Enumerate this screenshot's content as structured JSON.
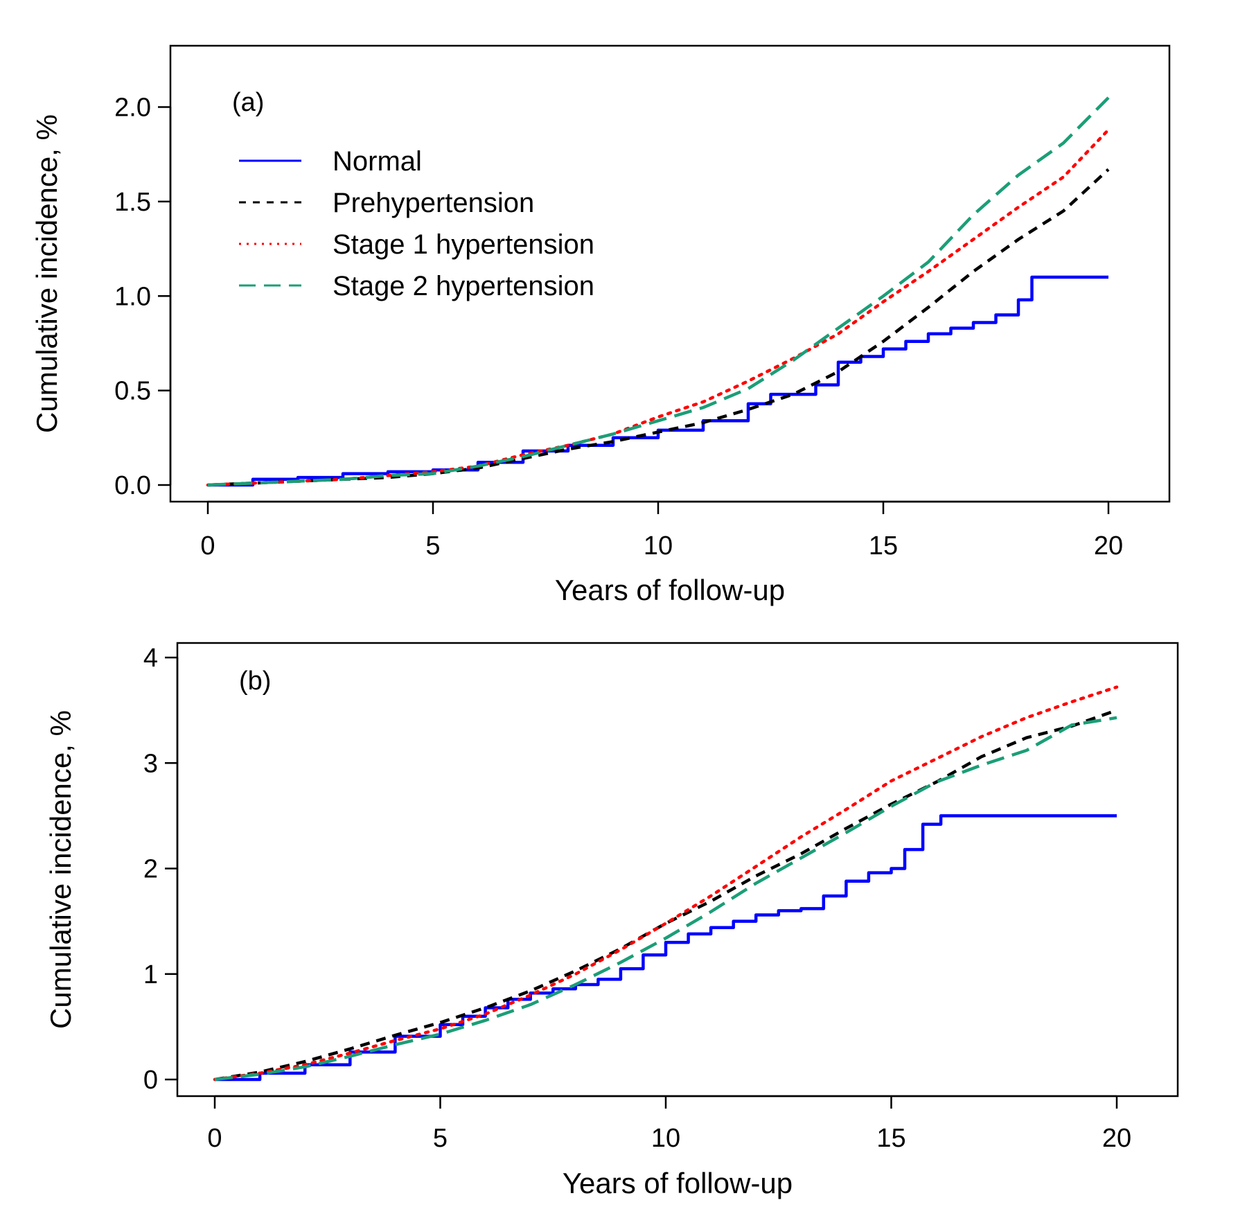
{
  "chart_data": [
    {
      "type": "line",
      "panel_label": "(a)",
      "xlabel": "Years of follow-up",
      "ylabel": "Cumulative incidence, %",
      "xlim": [
        0,
        20
      ],
      "ylim": [
        0,
        2.2
      ],
      "x_ticks": [
        0,
        5,
        10,
        15,
        20
      ],
      "x_tick_labels": [
        "0",
        "5",
        "10",
        "15",
        "20"
      ],
      "y_ticks": [
        0,
        0.5,
        1.0,
        1.5,
        2.0
      ],
      "y_tick_labels": [
        "0.0",
        "0.5",
        "1.0",
        "1.5",
        "2.0"
      ],
      "grid": false,
      "legend_position": "top-left",
      "series": [
        {
          "name": "Normal",
          "color": "#0000ff",
          "dash": "solid",
          "step": true,
          "points": [
            [
              0,
              0
            ],
            [
              1,
              0.03
            ],
            [
              2,
              0.04
            ],
            [
              3,
              0.06
            ],
            [
              4,
              0.07
            ],
            [
              5,
              0.08
            ],
            [
              6,
              0.12
            ],
            [
              7,
              0.18
            ],
            [
              8,
              0.21
            ],
            [
              9,
              0.25
            ],
            [
              10,
              0.29
            ],
            [
              11,
              0.34
            ],
            [
              12,
              0.43
            ],
            [
              12.5,
              0.48
            ],
            [
              13.5,
              0.53
            ],
            [
              14,
              0.65
            ],
            [
              14.5,
              0.68
            ],
            [
              15,
              0.72
            ],
            [
              15.5,
              0.76
            ],
            [
              16,
              0.8
            ],
            [
              16.5,
              0.83
            ],
            [
              17,
              0.86
            ],
            [
              17.5,
              0.9
            ],
            [
              18,
              0.98
            ],
            [
              18.3,
              1.1
            ],
            [
              20,
              1.1
            ]
          ]
        },
        {
          "name": "Prehypertension",
          "color": "#000000",
          "dash": "shortdash",
          "step": false,
          "points": [
            [
              0,
              0
            ],
            [
              1,
              0.01
            ],
            [
              2,
              0.02
            ],
            [
              3,
              0.03
            ],
            [
              4,
              0.04
            ],
            [
              5,
              0.06
            ],
            [
              6,
              0.09
            ],
            [
              7,
              0.14
            ],
            [
              8,
              0.19
            ],
            [
              9,
              0.23
            ],
            [
              10,
              0.28
            ],
            [
              11,
              0.33
            ],
            [
              12,
              0.4
            ],
            [
              13,
              0.48
            ],
            [
              14,
              0.6
            ],
            [
              15,
              0.76
            ],
            [
              16,
              0.94
            ],
            [
              17,
              1.13
            ],
            [
              18,
              1.3
            ],
            [
              19,
              1.45
            ],
            [
              20,
              1.67
            ]
          ]
        },
        {
          "name": "Stage 1 hypertension",
          "color": "#ff0000",
          "dash": "dotted",
          "step": false,
          "points": [
            [
              0,
              0
            ],
            [
              1,
              0.01
            ],
            [
              2,
              0.02
            ],
            [
              3,
              0.03
            ],
            [
              4,
              0.05
            ],
            [
              5,
              0.07
            ],
            [
              6,
              0.1
            ],
            [
              7,
              0.16
            ],
            [
              8,
              0.21
            ],
            [
              9,
              0.27
            ],
            [
              10,
              0.36
            ],
            [
              11,
              0.44
            ],
            [
              12,
              0.55
            ],
            [
              13,
              0.67
            ],
            [
              14,
              0.8
            ],
            [
              15,
              0.97
            ],
            [
              16,
              1.13
            ],
            [
              17,
              1.3
            ],
            [
              18,
              1.47
            ],
            [
              19,
              1.63
            ],
            [
              20,
              1.88
            ]
          ]
        },
        {
          "name": "Stage 2 hypertension",
          "color": "#1b9e77",
          "dash": "longdash",
          "step": false,
          "points": [
            [
              0,
              0
            ],
            [
              1,
              0.01
            ],
            [
              2,
              0.02
            ],
            [
              3,
              0.03
            ],
            [
              4,
              0.05
            ],
            [
              5,
              0.06
            ],
            [
              6,
              0.1
            ],
            [
              7,
              0.15
            ],
            [
              8,
              0.21
            ],
            [
              9,
              0.27
            ],
            [
              10,
              0.34
            ],
            [
              11,
              0.41
            ],
            [
              12,
              0.51
            ],
            [
              13,
              0.66
            ],
            [
              14,
              0.83
            ],
            [
              15,
              1.0
            ],
            [
              16,
              1.18
            ],
            [
              17,
              1.43
            ],
            [
              18,
              1.64
            ],
            [
              19,
              1.81
            ],
            [
              20,
              2.05
            ]
          ]
        }
      ]
    },
    {
      "type": "line",
      "panel_label": "(b)",
      "xlabel": "Years of follow-up",
      "ylabel": "Cumulative incidence, %",
      "xlim": [
        0,
        20
      ],
      "ylim": [
        0,
        4
      ],
      "x_ticks": [
        0,
        5,
        10,
        15,
        20
      ],
      "x_tick_labels": [
        "0",
        "5",
        "10",
        "15",
        "20"
      ],
      "y_ticks": [
        0,
        1,
        2,
        3,
        4
      ],
      "y_tick_labels": [
        "0",
        "1",
        "2",
        "3",
        "4"
      ],
      "grid": false,
      "series": [
        {
          "name": "Normal",
          "color": "#0000ff",
          "dash": "solid",
          "step": true,
          "points": [
            [
              0,
              0
            ],
            [
              1,
              0.06
            ],
            [
              2,
              0.14
            ],
            [
              3,
              0.26
            ],
            [
              4,
              0.41
            ],
            [
              5,
              0.52
            ],
            [
              5.5,
              0.6
            ],
            [
              6,
              0.68
            ],
            [
              6.5,
              0.76
            ],
            [
              7,
              0.82
            ],
            [
              7.5,
              0.86
            ],
            [
              8,
              0.9
            ],
            [
              8.5,
              0.95
            ],
            [
              9,
              1.05
            ],
            [
              9.5,
              1.18
            ],
            [
              10,
              1.3
            ],
            [
              10.5,
              1.38
            ],
            [
              11,
              1.44
            ],
            [
              11.5,
              1.5
            ],
            [
              12,
              1.56
            ],
            [
              12.5,
              1.6
            ],
            [
              13,
              1.62
            ],
            [
              13.5,
              1.74
            ],
            [
              14,
              1.88
            ],
            [
              14.5,
              1.96
            ],
            [
              15,
              2.0
            ],
            [
              15.3,
              2.18
            ],
            [
              15.7,
              2.42
            ],
            [
              16.1,
              2.5
            ],
            [
              20,
              2.5
            ]
          ]
        },
        {
          "name": "Prehypertension",
          "color": "#000000",
          "dash": "shortdash",
          "step": false,
          "points": [
            [
              0,
              0
            ],
            [
              1,
              0.07
            ],
            [
              2,
              0.17
            ],
            [
              3,
              0.29
            ],
            [
              4,
              0.42
            ],
            [
              5,
              0.54
            ],
            [
              6,
              0.68
            ],
            [
              7,
              0.84
            ],
            [
              8,
              1.03
            ],
            [
              9,
              1.24
            ],
            [
              10,
              1.48
            ],
            [
              11,
              1.69
            ],
            [
              12,
              1.93
            ],
            [
              13,
              2.14
            ],
            [
              14,
              2.38
            ],
            [
              15,
              2.61
            ],
            [
              16,
              2.82
            ],
            [
              17,
              3.06
            ],
            [
              18,
              3.24
            ],
            [
              19,
              3.35
            ],
            [
              20,
              3.5
            ]
          ]
        },
        {
          "name": "Stage 1 hypertension",
          "color": "#ff0000",
          "dash": "dotted",
          "step": false,
          "points": [
            [
              0,
              0
            ],
            [
              1,
              0.06
            ],
            [
              2,
              0.14
            ],
            [
              3,
              0.25
            ],
            [
              4,
              0.37
            ],
            [
              5,
              0.48
            ],
            [
              6,
              0.62
            ],
            [
              7,
              0.8
            ],
            [
              8,
              1.0
            ],
            [
              9,
              1.23
            ],
            [
              10,
              1.48
            ],
            [
              11,
              1.74
            ],
            [
              12,
              2.02
            ],
            [
              13,
              2.3
            ],
            [
              14,
              2.56
            ],
            [
              15,
              2.83
            ],
            [
              16,
              3.04
            ],
            [
              17,
              3.25
            ],
            [
              18,
              3.43
            ],
            [
              19,
              3.58
            ],
            [
              20,
              3.72
            ]
          ]
        },
        {
          "name": "Stage 2 hypertension",
          "color": "#1b9e77",
          "dash": "longdash",
          "step": false,
          "points": [
            [
              0,
              0
            ],
            [
              1,
              0.05
            ],
            [
              2,
              0.12
            ],
            [
              3,
              0.22
            ],
            [
              4,
              0.33
            ],
            [
              5,
              0.43
            ],
            [
              6,
              0.56
            ],
            [
              7,
              0.71
            ],
            [
              8,
              0.9
            ],
            [
              9,
              1.11
            ],
            [
              10,
              1.34
            ],
            [
              11,
              1.59
            ],
            [
              12,
              1.86
            ],
            [
              13,
              2.1
            ],
            [
              14,
              2.34
            ],
            [
              15,
              2.59
            ],
            [
              16,
              2.82
            ],
            [
              17,
              2.98
            ],
            [
              18,
              3.12
            ],
            [
              19,
              3.36
            ],
            [
              20,
              3.43
            ]
          ]
        }
      ]
    }
  ]
}
